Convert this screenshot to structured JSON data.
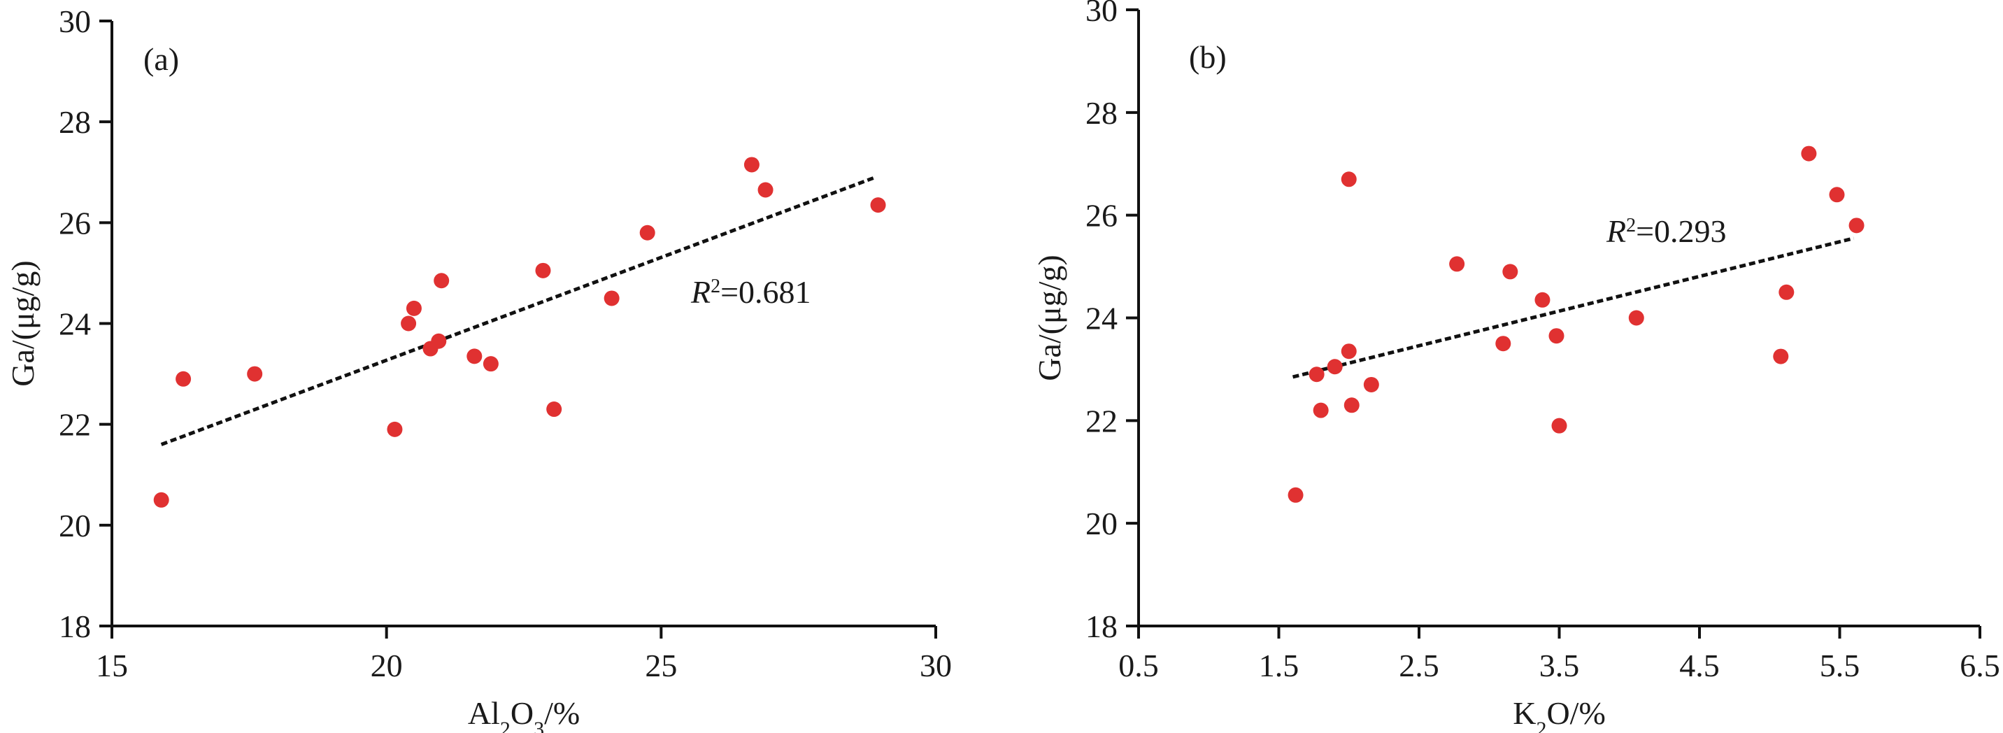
{
  "chart_data": [
    {
      "type": "scatter",
      "panel_label": "(a)",
      "xlabel": {
        "base": "Al",
        "sub1": "2",
        "mid": "O",
        "sub2": "3",
        "tail": "/%"
      },
      "ylabel": "Ga/(μg/g)",
      "xlim": [
        15,
        30
      ],
      "ylim": [
        18,
        30
      ],
      "xticks": [
        15,
        20,
        25,
        30
      ],
      "xtick_labels": [
        "15",
        "20",
        "25",
        "30"
      ],
      "yticks": [
        18,
        20,
        22,
        24,
        26,
        28,
        30
      ],
      "ytick_labels": [
        "18",
        "20",
        "22",
        "24",
        "26",
        "28",
        "30"
      ],
      "annotation": {
        "italic": "R",
        "sup": "2",
        "text": "=0.681"
      },
      "marker_color": "#e03131",
      "trend_line": {
        "x": [
          15.9,
          28.9
        ],
        "y": [
          21.6,
          26.9
        ]
      },
      "points": [
        {
          "x": 15.9,
          "y": 20.5
        },
        {
          "x": 16.3,
          "y": 22.9
        },
        {
          "x": 17.6,
          "y": 23.0
        },
        {
          "x": 20.15,
          "y": 21.9
        },
        {
          "x": 20.4,
          "y": 24.0
        },
        {
          "x": 20.5,
          "y": 24.3
        },
        {
          "x": 20.8,
          "y": 23.5
        },
        {
          "x": 20.95,
          "y": 23.65
        },
        {
          "x": 21.0,
          "y": 24.85
        },
        {
          "x": 21.6,
          "y": 23.35
        },
        {
          "x": 21.9,
          "y": 23.2
        },
        {
          "x": 22.85,
          "y": 25.05
        },
        {
          "x": 23.05,
          "y": 22.3
        },
        {
          "x": 24.1,
          "y": 24.5
        },
        {
          "x": 24.75,
          "y": 25.8
        },
        {
          "x": 26.65,
          "y": 27.15
        },
        {
          "x": 26.9,
          "y": 26.65
        },
        {
          "x": 28.95,
          "y": 26.35
        }
      ]
    },
    {
      "type": "scatter",
      "panel_label": "(b)",
      "xlabel": {
        "base": "K",
        "sub1": "2",
        "mid": "O",
        "sub2": "",
        "tail": "/%"
      },
      "ylabel": "Ga/(μg/g)",
      "xlim": [
        0.5,
        6.5
      ],
      "ylim": [
        18,
        30
      ],
      "xticks": [
        0.5,
        1.5,
        2.5,
        3.5,
        4.5,
        5.5,
        6.5
      ],
      "xtick_labels": [
        "0.5",
        "1.5",
        "2.5",
        "3.5",
        "4.5",
        "5.5",
        "6.5"
      ],
      "yticks": [
        18,
        20,
        22,
        24,
        26,
        28,
        30
      ],
      "ytick_labels": [
        "18",
        "20",
        "22",
        "24",
        "26",
        "28",
        "30"
      ],
      "annotation": {
        "italic": "R",
        "sup": "2",
        "text": "=0.293"
      },
      "marker_color": "#e03131",
      "trend_line": {
        "x": [
          1.6,
          5.6
        ],
        "y": [
          22.85,
          25.55
        ]
      },
      "points": [
        {
          "x": 1.62,
          "y": 20.55
        },
        {
          "x": 1.77,
          "y": 22.9
        },
        {
          "x": 1.8,
          "y": 22.2
        },
        {
          "x": 1.9,
          "y": 23.05
        },
        {
          "x": 2.0,
          "y": 26.7
        },
        {
          "x": 2.0,
          "y": 23.35
        },
        {
          "x": 2.02,
          "y": 22.3
        },
        {
          "x": 2.16,
          "y": 22.7
        },
        {
          "x": 2.77,
          "y": 25.05
        },
        {
          "x": 3.1,
          "y": 23.5
        },
        {
          "x": 3.15,
          "y": 24.9
        },
        {
          "x": 3.38,
          "y": 24.35
        },
        {
          "x": 3.48,
          "y": 23.65
        },
        {
          "x": 3.5,
          "y": 21.9
        },
        {
          "x": 4.05,
          "y": 24.0
        },
        {
          "x": 5.08,
          "y": 23.25
        },
        {
          "x": 5.12,
          "y": 24.5
        },
        {
          "x": 5.28,
          "y": 27.2
        },
        {
          "x": 5.48,
          "y": 26.4
        },
        {
          "x": 5.62,
          "y": 25.8
        }
      ]
    }
  ]
}
